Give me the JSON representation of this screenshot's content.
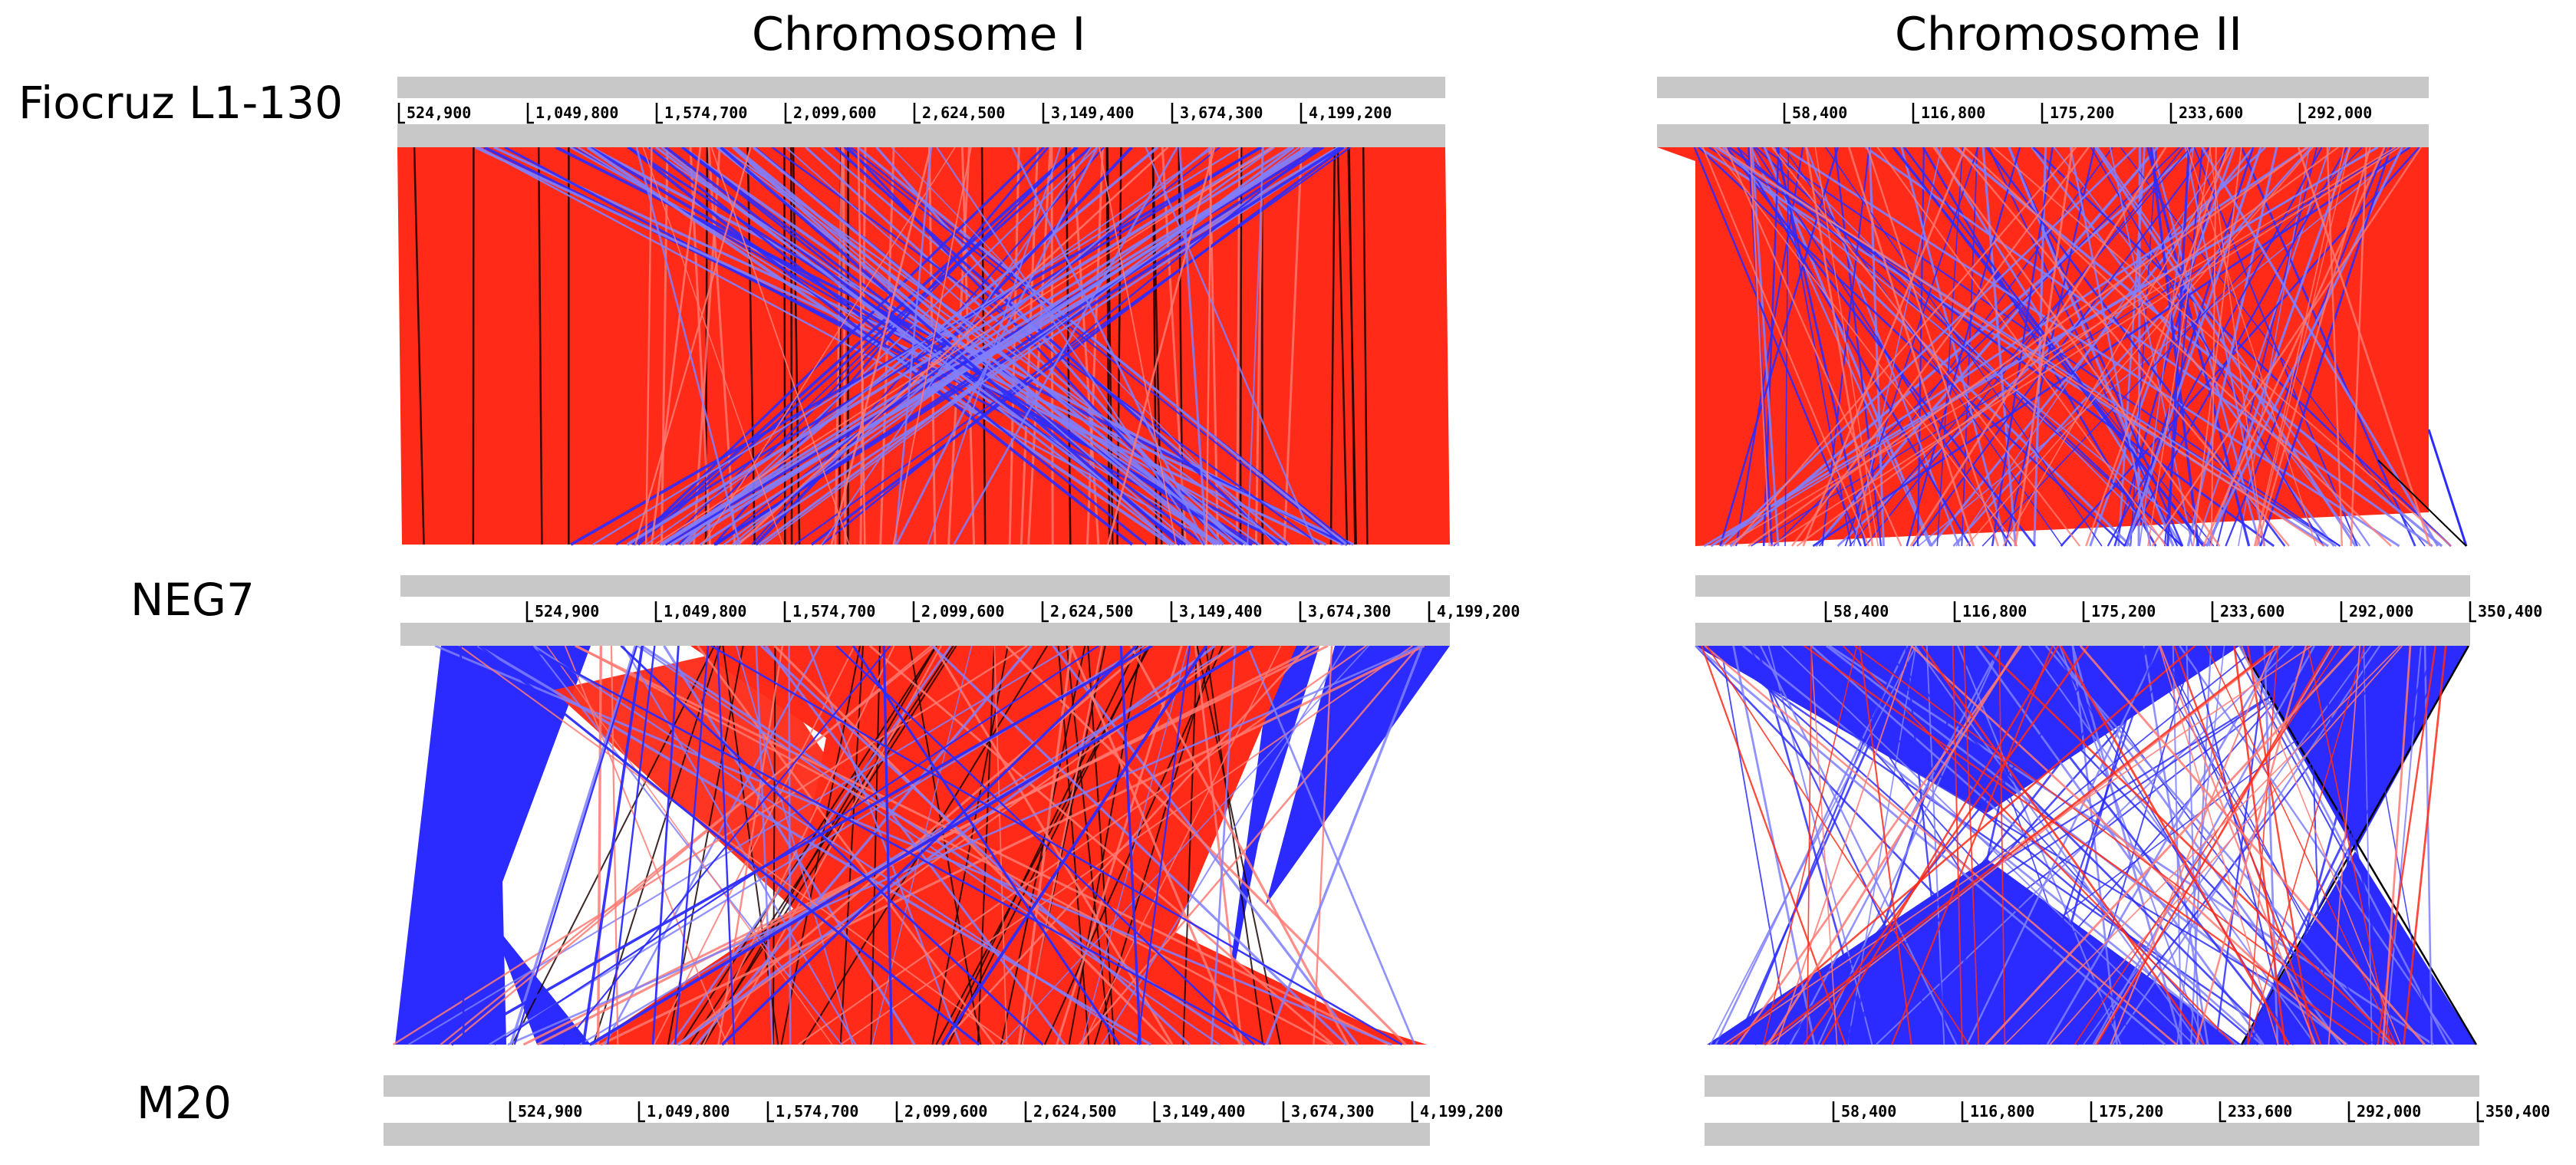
{
  "titles": {
    "chromosome_1": "Chromosome I",
    "chromosome_2": "Chromosome II"
  },
  "genomes": {
    "fiocruz": "Fiocruz L1-130",
    "neg7": "NEG7",
    "m20": "M20"
  },
  "ticks": {
    "chr1": [
      "524,900",
      "1,049,800",
      "1,574,700",
      "2,099,600",
      "2,624,500",
      "3,149,400",
      "3,674,300",
      "4,199,200"
    ],
    "chr2_top": [
      "58,400",
      "116,800",
      "175,200",
      "233,600",
      "292,000"
    ],
    "chr2": [
      "58,400",
      "116,800",
      "175,200",
      "233,600",
      "292,000",
      "350,400"
    ]
  },
  "colors": {
    "forward_match": "#ff2a17",
    "reverse_match": "#2b2bff",
    "light_forward": "#ff7a73",
    "light_reverse": "#7f7fff",
    "track_gray": "#c8c8c8",
    "separator": "#000000"
  }
}
